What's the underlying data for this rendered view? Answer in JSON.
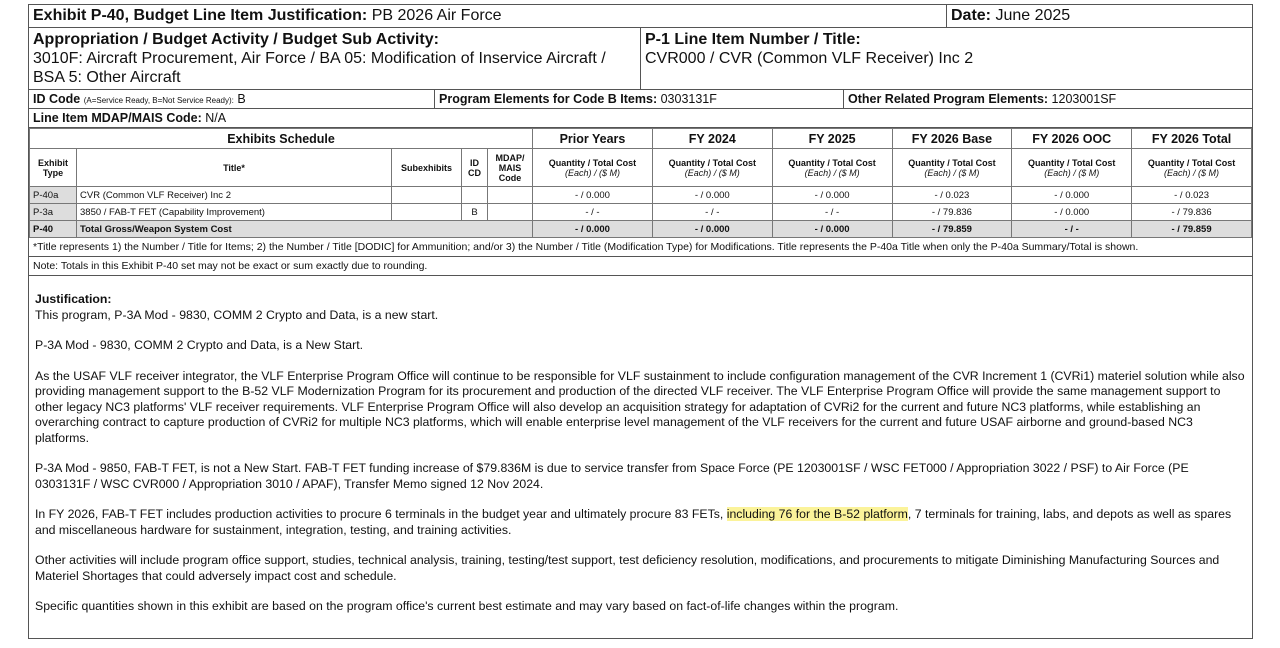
{
  "header": {
    "exhibit_label": "Exhibit P-40, Budget Line Item Justification:",
    "exhibit_value": "PB 2026 Air Force",
    "date_label": "Date:",
    "date_value": "June 2025"
  },
  "appropriation": {
    "label": "Appropriation / Budget Activity / Budget Sub Activity:",
    "value": "3010F: Aircraft Procurement, Air Force / BA 05: Modification of Inservice Aircraft / BSA 5: Other Aircraft"
  },
  "p1": {
    "label": "P-1 Line Item Number / Title:",
    "value": "CVR000 / CVR (Common VLF Receiver) Inc 2"
  },
  "id_code": {
    "label": "ID Code",
    "hint": "(A=Service Ready, B=Not Service Ready):",
    "value": "B"
  },
  "pe_b": {
    "label": "Program Elements for Code B Items:",
    "value": "0303131F"
  },
  "other_pe": {
    "label": "Other Related Program Elements:",
    "value": "1203001SF"
  },
  "mdap": {
    "label": "Line Item MDAP/MAIS Code:",
    "value": "N/A"
  },
  "table": {
    "schedule_label": "Exhibits Schedule",
    "periods": [
      "Prior Years",
      "FY 2024",
      "FY 2025",
      "FY 2026 Base",
      "FY 2026 OOC",
      "FY 2026 Total"
    ],
    "sub_headers": {
      "type": "Exhibit Type",
      "title": "Title*",
      "subexhibits": "Subexhibits",
      "idcd": "ID CD",
      "mdap": "MDAP/ MAIS Code",
      "qty": "Quantity / Total Cost",
      "units": "(Each) / ($ M)"
    },
    "rows": [
      {
        "type": "P-40a",
        "title": "CVR (Common VLF Receiver) Inc 2",
        "sub": "",
        "idcd": "",
        "mdap": "",
        "values": [
          "- / 0.000",
          "- / 0.000",
          "- / 0.000",
          "- / 0.023",
          "- / 0.000",
          "- / 0.023"
        ]
      },
      {
        "type": "P-3a",
        "title": "3850 / FAB-T FET (Capability Improvement)",
        "sub": "",
        "idcd": "B",
        "mdap": "",
        "values": [
          "- / -",
          "- / -",
          "- / -",
          "- / 79.836",
          "- / 0.000",
          "- / 79.836"
        ]
      }
    ],
    "total": {
      "type": "P-40",
      "title": "Total Gross/Weapon System Cost",
      "values": [
        "- / 0.000",
        "- / 0.000",
        "- / 0.000",
        "- / 79.859",
        "- / -",
        "- / 79.859"
      ]
    },
    "footnote": "*Title represents 1) the Number / Title for Items; 2) the Number / Title [DODIC] for Ammunition; and/or 3) the Number / Title (Modification Type) for Modifications. Title represents the P-40a Title when only the P-40a Summary/Total is shown.",
    "note": "Note: Totals in this Exhibit P-40 set may not be exact or sum exactly due to rounding."
  },
  "justification": {
    "heading": "Justification:",
    "p1": "This program, P-3A Mod - 9830, COMM 2 Crypto and Data, is a new start.",
    "p2": "P-3A Mod - 9830, COMM 2 Crypto and Data, is a New Start.",
    "p3": "As the USAF VLF receiver integrator, the VLF Enterprise Program Office will continue to be responsible for VLF sustainment to include configuration management of the CVR Increment 1 (CVRi1) materiel solution while also providing management support to the B-52 VLF Modernization Program for its procurement and production of the directed VLF receiver. The VLF Enterprise Program Office will provide the same management support to other legacy NC3 platforms' VLF receiver requirements. VLF Enterprise Program Office will also develop an acquisition strategy for adaptation of CVRi2 for the current and future NC3 platforms, while establishing an overarching contract to capture production of CVRi2 for multiple NC3 platforms, which will enable enterprise level management of the VLF receivers for the current and future USAF airborne and ground-based NC3 platforms.",
    "p4": "P-3A Mod - 9850, FAB-T FET, is not a New Start. FAB-T FET funding increase of $79.836M is due to service transfer from Space Force (PE 1203001SF / WSC FET000 / Appropriation 3022 / PSF) to Air Force (PE 0303131F / WSC CVR000 / Appropriation 3010 / APAF), Transfer Memo signed 12 Nov 2024.",
    "p5a": "In FY 2026, FAB-T FET includes production activities to procure 6 terminals in the budget year and ultimately procure 83 FETs, ",
    "p5hl": "including 76 for the B-52 platform",
    "p5b": ", 7 terminals for training, labs, and depots as well as spares and miscellaneous hardware for sustainment, integration, testing, and training activities.",
    "p6": "Other activities will include program office support, studies, technical analysis, training, testing/test support, test deficiency resolution, modifications, and procurements to mitigate Diminishing Manufacturing Sources and Materiel Shortages that could adversely impact cost and schedule.",
    "p7": "Specific quantities shown in this exhibit are based on the program office's current best estimate and may vary based on fact-of-life changes within the program."
  },
  "colors": {
    "highlight": "#fbf39a",
    "shade": "#dddddd"
  }
}
